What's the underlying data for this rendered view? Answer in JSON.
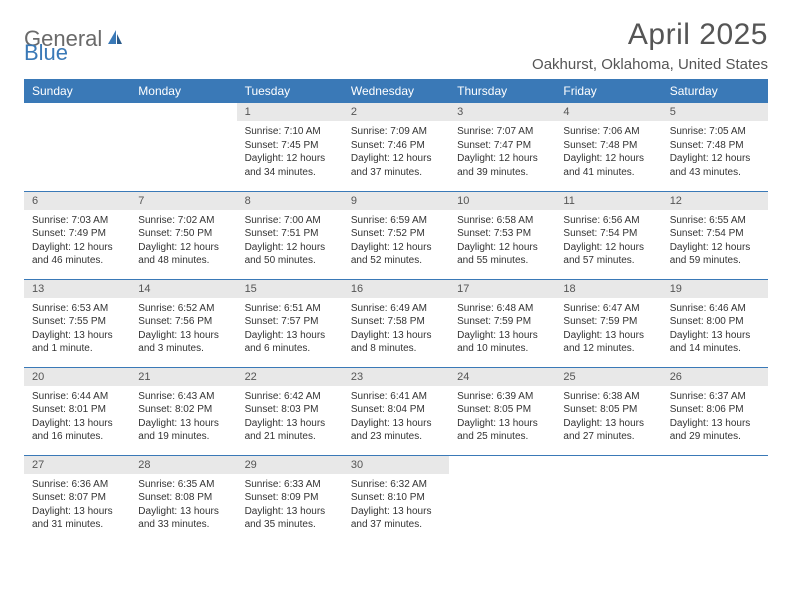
{
  "brand": {
    "part1": "General",
    "part2": "Blue"
  },
  "title": "April 2025",
  "location": "Oakhurst, Oklahoma, United States",
  "colors": {
    "header_bg": "#3a79b7",
    "header_text": "#ffffff",
    "daynum_bg": "#e8e8e8",
    "text": "#333333",
    "brand_gray": "#6a6a6a",
    "brand_blue": "#3a79b7"
  },
  "weekdays": [
    "Sunday",
    "Monday",
    "Tuesday",
    "Wednesday",
    "Thursday",
    "Friday",
    "Saturday"
  ],
  "weeks": [
    [
      {
        "empty": true
      },
      {
        "empty": true
      },
      {
        "day": "1",
        "sunrise": "Sunrise: 7:10 AM",
        "sunset": "Sunset: 7:45 PM",
        "daylight": "Daylight: 12 hours and 34 minutes."
      },
      {
        "day": "2",
        "sunrise": "Sunrise: 7:09 AM",
        "sunset": "Sunset: 7:46 PM",
        "daylight": "Daylight: 12 hours and 37 minutes."
      },
      {
        "day": "3",
        "sunrise": "Sunrise: 7:07 AM",
        "sunset": "Sunset: 7:47 PM",
        "daylight": "Daylight: 12 hours and 39 minutes."
      },
      {
        "day": "4",
        "sunrise": "Sunrise: 7:06 AM",
        "sunset": "Sunset: 7:48 PM",
        "daylight": "Daylight: 12 hours and 41 minutes."
      },
      {
        "day": "5",
        "sunrise": "Sunrise: 7:05 AM",
        "sunset": "Sunset: 7:48 PM",
        "daylight": "Daylight: 12 hours and 43 minutes."
      }
    ],
    [
      {
        "day": "6",
        "sunrise": "Sunrise: 7:03 AM",
        "sunset": "Sunset: 7:49 PM",
        "daylight": "Daylight: 12 hours and 46 minutes."
      },
      {
        "day": "7",
        "sunrise": "Sunrise: 7:02 AM",
        "sunset": "Sunset: 7:50 PM",
        "daylight": "Daylight: 12 hours and 48 minutes."
      },
      {
        "day": "8",
        "sunrise": "Sunrise: 7:00 AM",
        "sunset": "Sunset: 7:51 PM",
        "daylight": "Daylight: 12 hours and 50 minutes."
      },
      {
        "day": "9",
        "sunrise": "Sunrise: 6:59 AM",
        "sunset": "Sunset: 7:52 PM",
        "daylight": "Daylight: 12 hours and 52 minutes."
      },
      {
        "day": "10",
        "sunrise": "Sunrise: 6:58 AM",
        "sunset": "Sunset: 7:53 PM",
        "daylight": "Daylight: 12 hours and 55 minutes."
      },
      {
        "day": "11",
        "sunrise": "Sunrise: 6:56 AM",
        "sunset": "Sunset: 7:54 PM",
        "daylight": "Daylight: 12 hours and 57 minutes."
      },
      {
        "day": "12",
        "sunrise": "Sunrise: 6:55 AM",
        "sunset": "Sunset: 7:54 PM",
        "daylight": "Daylight: 12 hours and 59 minutes."
      }
    ],
    [
      {
        "day": "13",
        "sunrise": "Sunrise: 6:53 AM",
        "sunset": "Sunset: 7:55 PM",
        "daylight": "Daylight: 13 hours and 1 minute."
      },
      {
        "day": "14",
        "sunrise": "Sunrise: 6:52 AM",
        "sunset": "Sunset: 7:56 PM",
        "daylight": "Daylight: 13 hours and 3 minutes."
      },
      {
        "day": "15",
        "sunrise": "Sunrise: 6:51 AM",
        "sunset": "Sunset: 7:57 PM",
        "daylight": "Daylight: 13 hours and 6 minutes."
      },
      {
        "day": "16",
        "sunrise": "Sunrise: 6:49 AM",
        "sunset": "Sunset: 7:58 PM",
        "daylight": "Daylight: 13 hours and 8 minutes."
      },
      {
        "day": "17",
        "sunrise": "Sunrise: 6:48 AM",
        "sunset": "Sunset: 7:59 PM",
        "daylight": "Daylight: 13 hours and 10 minutes."
      },
      {
        "day": "18",
        "sunrise": "Sunrise: 6:47 AM",
        "sunset": "Sunset: 7:59 PM",
        "daylight": "Daylight: 13 hours and 12 minutes."
      },
      {
        "day": "19",
        "sunrise": "Sunrise: 6:46 AM",
        "sunset": "Sunset: 8:00 PM",
        "daylight": "Daylight: 13 hours and 14 minutes."
      }
    ],
    [
      {
        "day": "20",
        "sunrise": "Sunrise: 6:44 AM",
        "sunset": "Sunset: 8:01 PM",
        "daylight": "Daylight: 13 hours and 16 minutes."
      },
      {
        "day": "21",
        "sunrise": "Sunrise: 6:43 AM",
        "sunset": "Sunset: 8:02 PM",
        "daylight": "Daylight: 13 hours and 19 minutes."
      },
      {
        "day": "22",
        "sunrise": "Sunrise: 6:42 AM",
        "sunset": "Sunset: 8:03 PM",
        "daylight": "Daylight: 13 hours and 21 minutes."
      },
      {
        "day": "23",
        "sunrise": "Sunrise: 6:41 AM",
        "sunset": "Sunset: 8:04 PM",
        "daylight": "Daylight: 13 hours and 23 minutes."
      },
      {
        "day": "24",
        "sunrise": "Sunrise: 6:39 AM",
        "sunset": "Sunset: 8:05 PM",
        "daylight": "Daylight: 13 hours and 25 minutes."
      },
      {
        "day": "25",
        "sunrise": "Sunrise: 6:38 AM",
        "sunset": "Sunset: 8:05 PM",
        "daylight": "Daylight: 13 hours and 27 minutes."
      },
      {
        "day": "26",
        "sunrise": "Sunrise: 6:37 AM",
        "sunset": "Sunset: 8:06 PM",
        "daylight": "Daylight: 13 hours and 29 minutes."
      }
    ],
    [
      {
        "day": "27",
        "sunrise": "Sunrise: 6:36 AM",
        "sunset": "Sunset: 8:07 PM",
        "daylight": "Daylight: 13 hours and 31 minutes."
      },
      {
        "day": "28",
        "sunrise": "Sunrise: 6:35 AM",
        "sunset": "Sunset: 8:08 PM",
        "daylight": "Daylight: 13 hours and 33 minutes."
      },
      {
        "day": "29",
        "sunrise": "Sunrise: 6:33 AM",
        "sunset": "Sunset: 8:09 PM",
        "daylight": "Daylight: 13 hours and 35 minutes."
      },
      {
        "day": "30",
        "sunrise": "Sunrise: 6:32 AM",
        "sunset": "Sunset: 8:10 PM",
        "daylight": "Daylight: 13 hours and 37 minutes."
      },
      {
        "empty": true
      },
      {
        "empty": true
      },
      {
        "empty": true
      }
    ]
  ]
}
